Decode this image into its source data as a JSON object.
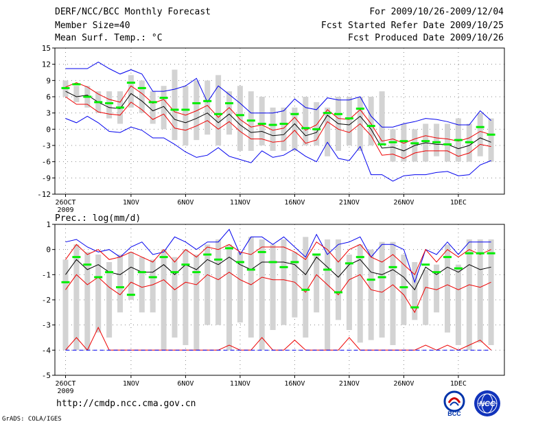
{
  "header": {
    "title": "DERF/NCC/BCC Monthly Forecast",
    "member_size": "Member Size=40",
    "variable": "Mean Surf. Temp.: °C",
    "period": "For 2009/10/26-2009/12/04",
    "start_date": "Fcst Started Refer Date 2009/10/25",
    "produced_date": "Fcst Produced Date 2009/10/26"
  },
  "footer": {
    "url": "http://cmdp.ncc.cma.gov.cn",
    "credit": "GrADS: COLA/IGES",
    "logo_bcc": "BCC",
    "logo_ncc": "NCC"
  },
  "colors": {
    "box": "#d3d3d3",
    "median": "#00ee00",
    "mean": "#000000",
    "stdev": "#ee0000",
    "extreme": "#0000ee"
  },
  "chart_data": [
    {
      "type": "box",
      "title": "Mean Surf. Temp.: °C",
      "ylim": [
        -12,
        15
      ],
      "yticks": [
        -12,
        -9,
        -6,
        -3,
        0,
        3,
        6,
        9,
        12,
        15
      ],
      "xtick_labels": [
        {
          "day": 1,
          "label": "26OCT",
          "sub": "2009"
        },
        {
          "day": 7,
          "label": "1NOV"
        },
        {
          "day": 12,
          "label": "6NOV"
        },
        {
          "day": 17,
          "label": "11NOV"
        },
        {
          "day": 22,
          "label": "16NOV"
        },
        {
          "day": 27,
          "label": "21NOV"
        },
        {
          "day": 32,
          "label": "26NOV"
        },
        {
          "day": 37,
          "label": "1DEC"
        }
      ],
      "days": 40,
      "box_low": [
        6,
        5,
        4,
        3,
        2,
        1,
        4,
        3,
        1,
        0,
        -2,
        -3,
        -2,
        -1,
        -3,
        -1,
        -4,
        -4,
        -3,
        -4,
        -4,
        -4,
        -3,
        -3,
        -5,
        -4,
        -3,
        -4,
        -3,
        -3,
        -6,
        -6,
        -6,
        -6,
        -5,
        -6,
        -6,
        -6,
        -5,
        -6
      ],
      "box_high": [
        9,
        8,
        8,
        7,
        7,
        7,
        10,
        9,
        7,
        8,
        11,
        8,
        9,
        9,
        10,
        7,
        8,
        7,
        6,
        4,
        4,
        4,
        6,
        5,
        4,
        6,
        6,
        6,
        6,
        7,
        0,
        1,
        0,
        1,
        1,
        1,
        2,
        1,
        3,
        2
      ],
      "median": [
        7.6,
        8.3,
        6.0,
        5.0,
        4.8,
        4.0,
        8.6,
        7.6,
        5.0,
        5.8,
        3.6,
        3.6,
        4.8,
        5.2,
        2.8,
        4.8,
        2.6,
        1.6,
        1.0,
        0.8,
        1.0,
        2.8,
        0.2,
        0.0,
        3.0,
        2.8,
        2.0,
        3.8,
        0.6,
        -2.8,
        -2.4,
        -2.2,
        -2.6,
        -2.2,
        -2.4,
        -2.8,
        -2.0,
        -2.4,
        0.4,
        -1.0
      ],
      "mean": [
        7.0,
        6.0,
        6.3,
        5.0,
        4.0,
        3.8,
        6.6,
        5.2,
        3.4,
        4.2,
        1.8,
        1.2,
        2.0,
        3.0,
        1.2,
        2.8,
        0.8,
        -0.6,
        -0.4,
        -1.2,
        -1.0,
        1.0,
        -1.2,
        -0.6,
        2.6,
        1.0,
        0.8,
        2.4,
        0.0,
        -3.5,
        -3.3,
        -4.0,
        -3.0,
        -2.5,
        -2.8,
        -2.8,
        -3.6,
        -3.0,
        -1.6,
        -2.4
      ],
      "std_upper": [
        7.8,
        8.6,
        7.8,
        6.5,
        5.5,
        5.0,
        8.0,
        6.6,
        4.8,
        5.5,
        3.2,
        2.6,
        3.4,
        4.4,
        2.2,
        4.0,
        1.8,
        0.4,
        0.8,
        -0.2,
        0.2,
        2.2,
        -0.2,
        0.8,
        3.6,
        2.0,
        1.8,
        3.6,
        1.0,
        -2.2,
        -1.8,
        -2.6,
        -1.8,
        -1.2,
        -1.6,
        -1.8,
        -2.2,
        -1.6,
        -0.4,
        -1.0
      ],
      "std_lower": [
        6.0,
        4.6,
        4.6,
        3.2,
        2.8,
        2.6,
        5.0,
        3.6,
        1.8,
        2.8,
        0.2,
        -0.2,
        0.6,
        1.6,
        0.0,
        1.4,
        -0.4,
        -1.8,
        -1.8,
        -2.4,
        -2.2,
        -0.2,
        -2.6,
        -2.0,
        1.4,
        0.0,
        -0.6,
        1.0,
        -1.2,
        -4.8,
        -4.6,
        -5.4,
        -4.4,
        -4.0,
        -4.0,
        -4.0,
        -5.0,
        -4.4,
        -2.8,
        -3.2
      ],
      "max": [
        11.2,
        11.2,
        11.2,
        12.4,
        11.2,
        10.2,
        11.0,
        10.2,
        7.0,
        7.0,
        7.4,
        8.0,
        9.4,
        5.0,
        8.0,
        6.4,
        4.8,
        3.0,
        3.0,
        3.0,
        3.4,
        5.6,
        4.0,
        3.6,
        5.8,
        5.4,
        5.4,
        6.0,
        2.4,
        0.4,
        0.4,
        1.0,
        1.4,
        2.0,
        1.8,
        1.4,
        0.8,
        0.8,
        3.4,
        1.6
      ],
      "min": [
        2.0,
        1.2,
        2.4,
        1.2,
        -0.4,
        -0.6,
        0.4,
        -0.2,
        -1.6,
        -1.6,
        -2.8,
        -4.2,
        -5.2,
        -4.8,
        -3.4,
        -5.0,
        -5.6,
        -6.2,
        -4.0,
        -5.2,
        -4.8,
        -3.6,
        -5.0,
        -6.0,
        -2.4,
        -5.4,
        -5.8,
        -3.2,
        -8.4,
        -8.4,
        -9.6,
        -8.6,
        -8.4,
        -8.4,
        -8.0,
        -7.8,
        -8.6,
        -8.4,
        -6.6,
        -5.8
      ]
    },
    {
      "type": "box",
      "title": "Prec.: log(mm/d)",
      "ylim": [
        -5,
        1
      ],
      "yticks": [
        -5,
        -4,
        -3,
        -2,
        -1,
        0,
        1
      ],
      "xtick_labels": [
        {
          "day": 1,
          "label": "26OCT",
          "sub": "2009"
        },
        {
          "day": 7,
          "label": "1NOV"
        },
        {
          "day": 12,
          "label": "6NOV"
        },
        {
          "day": 17,
          "label": "11NOV"
        },
        {
          "day": 22,
          "label": "16NOV"
        },
        {
          "day": 27,
          "label": "21NOV"
        },
        {
          "day": 32,
          "label": "26NOV"
        },
        {
          "day": 37,
          "label": "1DEC"
        }
      ],
      "days": 40,
      "box_low": [
        -4,
        -4,
        -4,
        -3.3,
        -3.5,
        -2.5,
        -2,
        -2.5,
        -2.5,
        -4,
        -3.5,
        -3.8,
        -4,
        -3,
        -3,
        -4,
        -2.9,
        -3.5,
        -4,
        -3.2,
        -3,
        -2.7,
        -3.5,
        -2.5,
        -4,
        -2.8,
        -3.2,
        -3.7,
        -3.6,
        -3.5,
        -3.8,
        -3,
        -2.8,
        -3,
        -2.5,
        -3.3,
        -3.8,
        -4,
        -3.7,
        -3.8
      ],
      "box_high": [
        -0.4,
        0.2,
        -0.1,
        -0.2,
        -0.5,
        -0.2,
        -0.1,
        -0.3,
        -0.4,
        0.0,
        -0.3,
        0.0,
        -0.2,
        0.2,
        0.4,
        0.2,
        -0.1,
        0.5,
        0.4,
        0.2,
        0.4,
        -0.1,
        0.5,
        -0.2,
        0.4,
        0.4,
        -0.2,
        0.2,
        0.0,
        0.3,
        0.3,
        -0.2,
        -0.5,
        -0.8,
        -0.6,
        0.2,
        -0.6,
        0.4,
        0.4,
        0.4
      ],
      "median": [
        -1.3,
        -0.3,
        -0.6,
        -1.1,
        -0.9,
        -1.5,
        -1.8,
        -0.9,
        -1.1,
        -0.3,
        -0.9,
        -0.6,
        -0.9,
        -0.2,
        -0.4,
        0.05,
        -0.5,
        -0.8,
        -0.1,
        -0.5,
        -0.7,
        -0.5,
        -1.6,
        -0.2,
        -0.8,
        -1.7,
        -0.55,
        -0.3,
        -1.2,
        -1.1,
        -0.7,
        -1.5,
        -2.3,
        -0.6,
        -0.9,
        -0.3,
        -0.75,
        -0.15,
        -0.15,
        -0.15
      ],
      "mean": [
        -1.0,
        -0.4,
        -0.8,
        -0.6,
        -0.9,
        -1.0,
        -0.7,
        -0.9,
        -0.9,
        -0.6,
        -1.0,
        -0.6,
        -0.8,
        -0.4,
        -0.6,
        -0.3,
        -0.6,
        -0.8,
        -0.5,
        -0.5,
        -0.5,
        -0.6,
        -1.0,
        -0.3,
        -0.7,
        -1.1,
        -0.6,
        -0.4,
        -0.9,
        -1.0,
        -0.8,
        -1.1,
        -1.6,
        -0.7,
        -1.0,
        -0.7,
        -0.9,
        -0.6,
        -0.8,
        -0.7
      ],
      "std_upper": [
        -0.4,
        0.2,
        -0.2,
        0.0,
        -0.4,
        -0.3,
        -0.1,
        -0.3,
        -0.5,
        0.0,
        -0.5,
        0.0,
        -0.3,
        0.1,
        0.0,
        0.2,
        -0.1,
        -0.2,
        0.1,
        0.1,
        0.1,
        -0.1,
        -0.4,
        0.3,
        0.0,
        -0.5,
        0.0,
        0.2,
        -0.3,
        -0.5,
        -0.2,
        -0.6,
        -1.0,
        0.0,
        -0.5,
        0.0,
        -0.3,
        0.0,
        -0.2,
        0.0
      ],
      "std_lower": [
        -1.6,
        -1.0,
        -1.4,
        -1.1,
        -1.5,
        -1.8,
        -1.3,
        -1.5,
        -1.4,
        -1.2,
        -1.6,
        -1.3,
        -1.4,
        -1.0,
        -1.2,
        -0.9,
        -1.2,
        -1.4,
        -1.1,
        -1.2,
        -1.2,
        -1.3,
        -1.7,
        -1.0,
        -1.4,
        -1.8,
        -1.2,
        -1.0,
        -1.6,
        -1.7,
        -1.4,
        -1.8,
        -2.5,
        -1.5,
        -1.6,
        -1.4,
        -1.6,
        -1.4,
        -1.5,
        -1.3
      ],
      "max": [
        0.3,
        0.4,
        0.1,
        -0.1,
        0.0,
        -0.3,
        0.1,
        0.3,
        -0.2,
        -0.1,
        0.5,
        0.3,
        0.0,
        0.3,
        0.3,
        0.8,
        -0.2,
        0.5,
        0.5,
        0.2,
        0.5,
        0.1,
        -0.3,
        0.6,
        -0.2,
        0.2,
        0.3,
        0.5,
        -0.3,
        0.2,
        0.2,
        0.0,
        -1.3,
        0.0,
        -0.2,
        0.3,
        -0.2,
        0.3,
        0.3,
        0.3
      ],
      "min": [
        -4,
        -3.5,
        -4,
        -3.1,
        -4,
        -4,
        -4,
        -4,
        -4,
        -4,
        -4,
        -4,
        -4,
        -4,
        -4,
        -3.8,
        -4,
        -4,
        -3.5,
        -4,
        -4,
        -3.6,
        -4,
        -4,
        -4,
        -4,
        -3.5,
        -4,
        -4,
        -4,
        -4,
        -4,
        -4,
        -3.8,
        -4,
        -3.8,
        -4,
        -3.8,
        -3.6,
        -4
      ],
      "min_floor": -4
    }
  ]
}
